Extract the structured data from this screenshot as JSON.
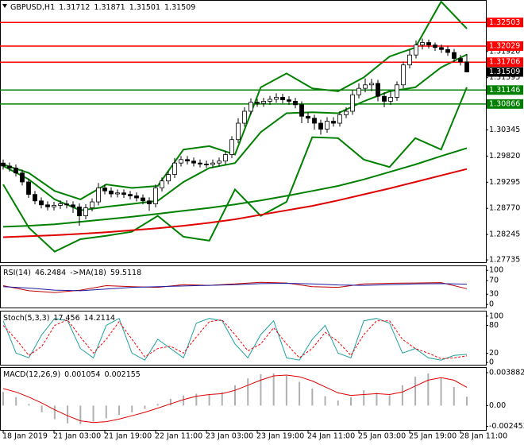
{
  "chart_data": [
    {
      "type": "candlestick",
      "title": "GBPUSD,H1",
      "open": [
        1.2968,
        1.2962,
        1.2958,
        1.2948,
        1.293,
        1.2905,
        1.2892,
        1.2884,
        1.288,
        1.2883,
        1.2886,
        1.2884,
        1.288,
        1.2862,
        1.2878,
        1.289,
        1.2918,
        1.2912,
        1.2906,
        1.2908,
        1.2905,
        1.2902,
        1.2898,
        1.2892,
        1.2886,
        1.2918,
        1.2932,
        1.2945,
        1.2968,
        1.2975,
        1.2972,
        1.2968,
        1.2966,
        1.2965,
        1.2968,
        1.2972,
        1.2985,
        1.3015,
        1.3048,
        1.3072,
        1.309,
        1.3088,
        1.3092,
        1.3096,
        1.31,
        1.3095,
        1.3092,
        1.3085,
        1.3062,
        1.3058,
        1.3048,
        1.3036,
        1.3052,
        1.3048,
        1.3065,
        1.3072,
        1.3105,
        1.3118,
        1.3125,
        1.3128,
        1.3102,
        1.3092,
        1.31,
        1.3125,
        1.3165,
        1.3185,
        1.3205,
        1.321,
        1.3205,
        1.32,
        1.3196,
        1.319,
        1.3178,
        1.31712
      ],
      "high": [
        1.2975,
        1.2969,
        1.2965,
        1.2955,
        1.2937,
        1.2912,
        1.2899,
        1.2891,
        1.289,
        1.2893,
        1.2893,
        1.2891,
        1.2887,
        1.2885,
        1.2897,
        1.2928,
        1.2925,
        1.2919,
        1.2915,
        1.2915,
        1.2912,
        1.2909,
        1.2905,
        1.2899,
        1.2925,
        1.2939,
        1.2952,
        1.2978,
        1.2982,
        1.2982,
        1.2979,
        1.2975,
        1.2973,
        1.2975,
        1.2979,
        1.2992,
        1.3022,
        1.3058,
        1.308,
        1.3098,
        1.3097,
        1.3099,
        1.3103,
        1.3108,
        1.3107,
        1.3102,
        1.3099,
        1.3092,
        1.307,
        1.3065,
        1.3055,
        1.306,
        1.306,
        1.3072,
        1.308,
        1.3115,
        1.3128,
        1.3138,
        1.3137,
        1.3135,
        1.311,
        1.3112,
        1.3132,
        1.3172,
        1.3195,
        1.3214,
        1.3218,
        1.3216,
        1.321,
        1.3206,
        1.3203,
        1.3197,
        1.3185,
        1.31871
      ],
      "low": [
        1.2955,
        1.2951,
        1.2941,
        1.2923,
        1.2898,
        1.2885,
        1.2877,
        1.2873,
        1.2873,
        1.2876,
        1.2877,
        1.2868,
        1.2842,
        1.2855,
        1.2871,
        1.2883,
        1.2905,
        1.2899,
        1.2899,
        1.2898,
        1.2895,
        1.2891,
        1.2885,
        1.2872,
        1.2879,
        1.2911,
        1.2925,
        1.2938,
        1.2961,
        1.2965,
        1.2961,
        1.2959,
        1.2958,
        1.2958,
        1.2961,
        1.2965,
        1.2978,
        1.3008,
        1.3041,
        1.3065,
        1.3081,
        1.3081,
        1.3085,
        1.3089,
        1.3088,
        1.3085,
        1.3078,
        1.3048,
        1.3048,
        1.3035,
        1.3025,
        1.3029,
        1.3041,
        1.3041,
        1.3058,
        1.3065,
        1.3098,
        1.311,
        1.3112,
        1.3092,
        1.308,
        1.3085,
        1.3093,
        1.3118,
        1.3158,
        1.3178,
        1.3196,
        1.3198,
        1.3193,
        1.3189,
        1.3183,
        1.3171,
        1.3164,
        1.31501
      ],
      "close": [
        1.2962,
        1.2958,
        1.2948,
        1.293,
        1.2905,
        1.2892,
        1.2884,
        1.288,
        1.2883,
        1.2886,
        1.2884,
        1.288,
        1.2862,
        1.2878,
        1.289,
        1.2918,
        1.2912,
        1.2906,
        1.2908,
        1.2905,
        1.2902,
        1.2898,
        1.2892,
        1.2886,
        1.2918,
        1.2932,
        1.2945,
        1.2968,
        1.2975,
        1.2972,
        1.2968,
        1.2966,
        1.2965,
        1.2968,
        1.2972,
        1.2985,
        1.3015,
        1.3048,
        1.3072,
        1.309,
        1.3088,
        1.3092,
        1.3096,
        1.31,
        1.3095,
        1.3092,
        1.3085,
        1.3062,
        1.3058,
        1.3048,
        1.3036,
        1.3052,
        1.3048,
        1.3065,
        1.3072,
        1.3105,
        1.3118,
        1.3125,
        1.3128,
        1.3102,
        1.3092,
        1.31,
        1.3125,
        1.3165,
        1.3185,
        1.3205,
        1.321,
        1.3205,
        1.32,
        1.3196,
        1.319,
        1.3178,
        1.31712,
        1.31509
      ],
      "overlays": [
        {
          "color": "#008000",
          "values": [
            1.2965,
            1.2948,
            1.2912,
            1.2895,
            1.2925,
            1.2918,
            1.2922,
            1.2995,
            1.3002,
            1.2985,
            1.312,
            1.3148,
            1.3118,
            1.3112,
            1.314,
            1.3182,
            1.32,
            1.3292,
            1.3238
          ]
        },
        {
          "color": "#008000",
          "values": [
            1.2925,
            1.2838,
            1.279,
            1.2815,
            1.2822,
            1.283,
            1.2862,
            1.282,
            1.2812,
            1.2915,
            1.2862,
            1.289,
            1.302,
            1.3018,
            1.2975,
            1.296,
            1.3018,
            1.2995,
            1.312
          ]
        },
        {
          "color": "#008000",
          "values": [
            1.2962,
            1.2935,
            1.2895,
            1.2873,
            1.288,
            1.2886,
            1.2892,
            1.293,
            1.2958,
            1.2968,
            1.303,
            1.3068,
            1.307,
            1.3068,
            1.3092,
            1.3112,
            1.312,
            1.316,
            1.3186
          ]
        },
        {
          "color": "#008000",
          "values": [
            1.284,
            1.2842,
            1.2845,
            1.285,
            1.2855,
            1.286,
            1.2866,
            1.2872,
            1.2878,
            1.2885,
            1.2893,
            1.2902,
            1.2912,
            1.2922,
            1.2935,
            1.295,
            1.2965,
            1.2982,
            1.2998
          ]
        },
        {
          "color": "#e00000",
          "values": [
            1.2819,
            1.2821,
            1.2823,
            1.2826,
            1.2829,
            1.2833,
            1.2837,
            1.2842,
            1.2848,
            1.2855,
            1.2864,
            1.2873,
            1.2882,
            1.2893,
            1.2905,
            1.2917,
            1.293,
            1.2943,
            1.2956
          ]
        }
      ],
      "levels": [
        {
          "value": 1.32503,
          "color": "#ff0000"
        },
        {
          "value": 1.32029,
          "color": "#ff0000"
        },
        {
          "value": 1.31706,
          "color": "#ff0000"
        },
        {
          "value": 1.31146,
          "color": "#008000"
        },
        {
          "value": 1.30866,
          "color": "#008000"
        }
      ],
      "ylim": [
        1.27688,
        1.32938
      ],
      "yticks": [
        {
          "value": 1.3192,
          "label": "1.31920"
        },
        1.31395,
        1.30345,
        {
          "value": 1.2982,
          "label": "1.29820"
        },
        1.29295,
        {
          "value": 1.2877,
          "label": "1.28770"
        },
        1.28245,
        1.27735
      ]
    },
    {
      "type": "line",
      "series": [
        {
          "name": "RSI(14)",
          "color": "#c00000",
          "values": [
            55,
            40,
            35,
            42,
            55,
            52,
            50,
            58,
            56,
            60,
            65,
            63,
            52,
            50,
            60,
            62,
            63,
            64,
            46.2484
          ]
        },
        {
          "name": "->MA(18)",
          "color": "#1a1aa0",
          "values": [
            52,
            48,
            42,
            40,
            45,
            50,
            52,
            54,
            56,
            58,
            61,
            62,
            60,
            57,
            56,
            58,
            60,
            61,
            59.5118
          ]
        }
      ],
      "ylim": [
        -9,
        112
      ],
      "yticks": [
        100,
        70,
        30,
        0
      ]
    },
    {
      "type": "line",
      "title": "Stoch(5,3,3)",
      "series": [
        {
          "color": "#20a0a0",
          "values": [
            90,
            20,
            10,
            60,
            95,
            90,
            30,
            10,
            80,
            95,
            20,
            5,
            50,
            30,
            10,
            85,
            95,
            90,
            40,
            10,
            60,
            90,
            10,
            5,
            50,
            80,
            20,
            10,
            90,
            95,
            85,
            20,
            30,
            10,
            5,
            15,
            17.456
          ]
        },
        {
          "color": "#ff0000",
          "dash": true,
          "values": [
            80,
            50,
            15,
            35,
            80,
            92,
            55,
            20,
            50,
            88,
            50,
            12,
            30,
            35,
            20,
            55,
            88,
            92,
            60,
            25,
            40,
            75,
            40,
            10,
            30,
            65,
            45,
            15,
            60,
            90,
            90,
            50,
            30,
            20,
            8,
            10,
            14.2114
          ]
        }
      ],
      "ylim": [
        -5,
        110
      ],
      "yticks": [
        100,
        80,
        20,
        0
      ]
    },
    {
      "type": "bar",
      "title": "MACD(12,26,9)",
      "series": [
        {
          "color": "#b0b0b0",
          "values": [
            0.0016,
            0.001,
            0.0002,
            -0.0008,
            -0.0016,
            -0.0021,
            -0.0022,
            -0.0019,
            -0.0015,
            -0.0011,
            -0.0008,
            -0.0004,
            0.0002,
            0.0008,
            0.0012,
            0.0014,
            0.0013,
            0.0016,
            0.0024,
            0.0032,
            0.0037,
            0.0038,
            0.0035,
            0.0028,
            0.002,
            0.0011,
            0.0006,
            0.001,
            0.0018,
            0.0015,
            0.0012,
            0.0024,
            0.0034,
            0.0038,
            0.0033,
            0.0022,
            0.001054
          ]
        },
        {
          "type": "line",
          "color": "#e00000",
          "values": [
            0.002,
            0.0016,
            0.001,
            0.0003,
            -0.0005,
            -0.0012,
            -0.0018,
            -0.002,
            -0.0019,
            -0.0016,
            -0.0012,
            -0.0008,
            -0.0003,
            0.0002,
            0.0007,
            0.0011,
            0.0013,
            0.0014,
            0.0018,
            0.0024,
            0.003,
            0.0035,
            0.0036,
            0.0034,
            0.0029,
            0.0022,
            0.0015,
            0.0012,
            0.0013,
            0.0014,
            0.0013,
            0.0016,
            0.0023,
            0.003,
            0.0033,
            0.003,
            0.002155
          ]
        }
      ],
      "ylim": [
        -0.00287,
        0.00444
      ],
      "yticks": [
        0.003882,
        {
          "value": 0,
          "label": "0.00"
        },
        -0.002453
      ],
      "xtick_labels": [
        "18 Jan 2019",
        "21 Jan 03:00",
        "21 Jan 19:00",
        "22 Jan 11:00",
        "23 Jan 03:00",
        "23 Jan 19:00",
        "24 Jan 11:00",
        "25 Jan 03:00",
        "25 Jan 19:00",
        "28 Jan 11:00"
      ]
    }
  ]
}
